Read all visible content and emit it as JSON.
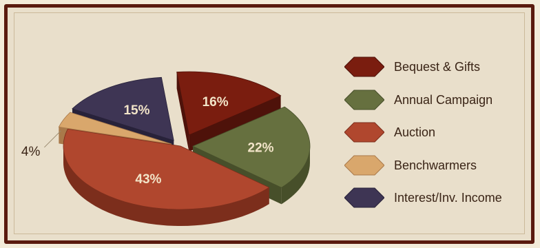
{
  "chart_data": {
    "type": "pie",
    "title": "",
    "slices": [
      {
        "label": "Bequest & Gifts",
        "value": 16,
        "display": "16%",
        "color": "#7a1d0f",
        "side": "#4e120a"
      },
      {
        "label": "Annual Campaign",
        "value": 22,
        "display": "22%",
        "color": "#66703f",
        "side": "#474f2a"
      },
      {
        "label": "Auction",
        "value": 43,
        "display": "43%",
        "color": "#b0472e",
        "side": "#7c2e1c"
      },
      {
        "label": "Benchwarmers",
        "value": 4,
        "display": "4%",
        "color": "#d9a76c",
        "side": "#a9794a"
      },
      {
        "label": "Interest/Inv. Income",
        "value": 15,
        "display": "15%",
        "color": "#3e3554",
        "side": "#28223a"
      }
    ],
    "legend_position": "right"
  }
}
